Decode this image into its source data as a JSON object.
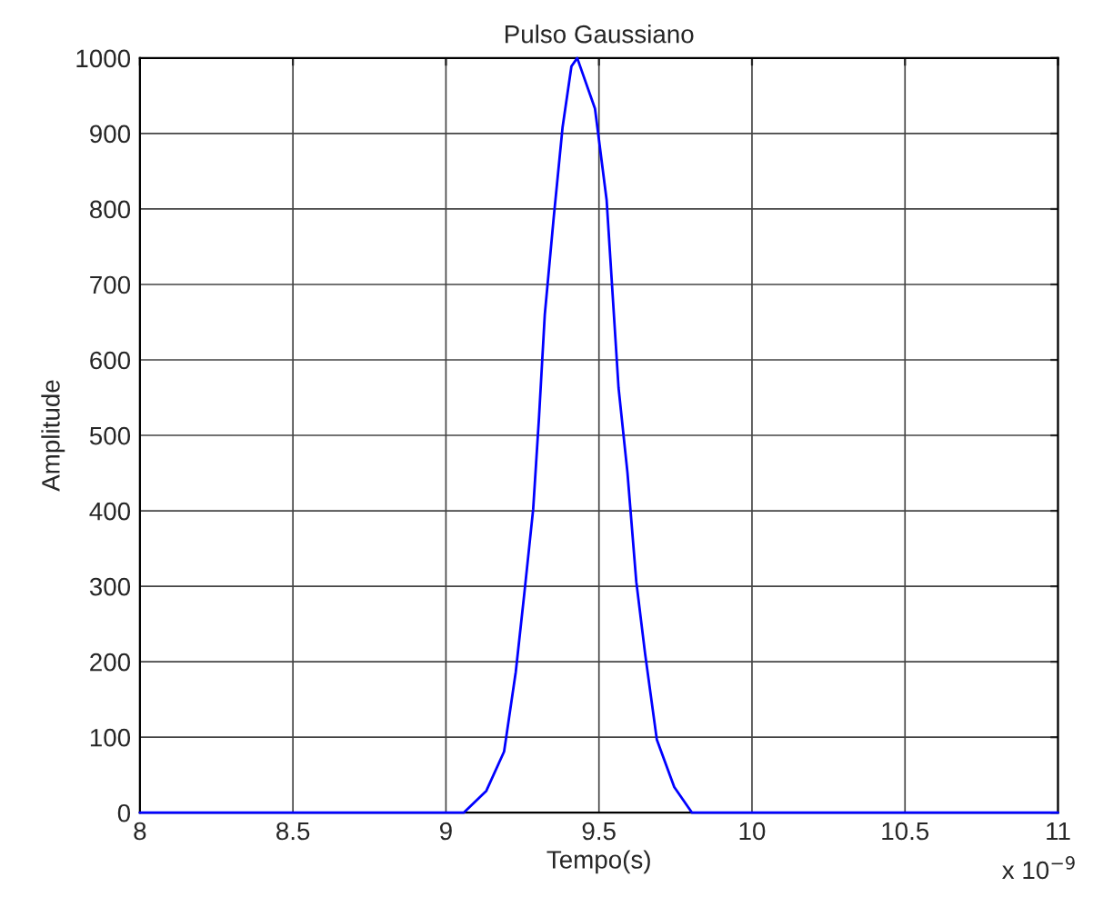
{
  "chart_data": {
    "type": "line",
    "title": "Pulso Gaussiano",
    "xlabel": "Tempo(s)",
    "ylabel": "Amplitude",
    "annotations": [
      "x 10$^{−9}$"
    ],
    "series": [
      {
        "color": "#0000ff",
        "x": [
          8,
          9.058,
          9.132,
          9.19,
          9.228,
          9.256,
          9.285,
          9.304,
          9.323,
          9.352,
          9.381,
          9.41,
          9.429,
          9.487,
          9.525,
          9.564,
          9.593,
          9.622,
          9.651,
          9.689,
          9.746,
          9.804,
          11
        ],
        "values": [
          0,
          0,
          29,
          81,
          186,
          290,
          402,
          523,
          660,
          788,
          908,
          989,
          1000,
          933,
          812,
          563,
          451,
          306,
          210,
          97,
          34,
          0,
          0
        ]
      }
    ],
    "xlim": [
      8,
      11
    ],
    "xticks": [
      8,
      8.5,
      9,
      9.5,
      10,
      10.5,
      11
    ],
    "ylim": [
      0,
      1000
    ],
    "yticks": [
      0,
      100,
      200,
      300,
      400,
      500,
      600,
      700,
      800,
      900,
      1000
    ],
    "grid": true,
    "legend": false
  }
}
